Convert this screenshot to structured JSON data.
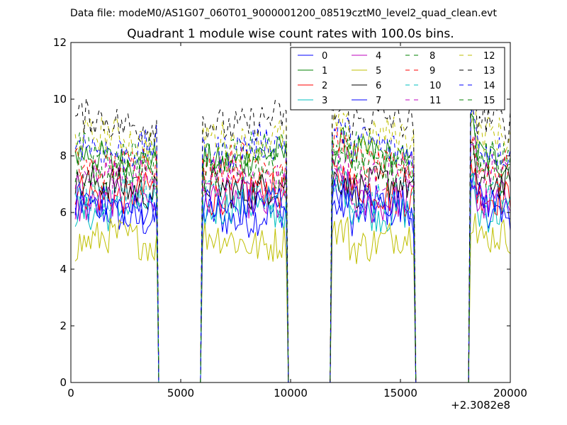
{
  "suptitle": "Data file: modeM0/AS1G07_060T01_9000001200_08519cztM0_level2_quad_clean.evt",
  "chart_data": {
    "type": "line",
    "title": "Quadrant 1 module wise count rates with 100.0s bins.",
    "xlabel": "",
    "ylabel": "",
    "xlim": [
      0,
      20000
    ],
    "ylim": [
      0,
      12
    ],
    "x_ticks": [
      0,
      5000,
      10000,
      15000,
      20000
    ],
    "y_ticks": [
      0,
      2,
      4,
      6,
      8,
      10,
      12
    ],
    "x_offset_label": "+2.3082e8",
    "grid": false,
    "legend_position": "top-right",
    "legend_columns": 4,
    "active_segments": [
      {
        "start": 200,
        "end": 3900
      },
      {
        "start": 6000,
        "end": 9800
      },
      {
        "start": 11900,
        "end": 15600
      },
      {
        "start": 18200,
        "end": 20000
      }
    ],
    "series": [
      {
        "name": "0",
        "color": "#0000ff",
        "dash": "solid",
        "level": 5.9
      },
      {
        "name": "1",
        "color": "#008000",
        "dash": "solid",
        "level": 7.9
      },
      {
        "name": "2",
        "color": "#ff0000",
        "dash": "solid",
        "level": 6.7
      },
      {
        "name": "3",
        "color": "#00bfbf",
        "dash": "solid",
        "level": 6.1
      },
      {
        "name": "4",
        "color": "#bf00bf",
        "dash": "solid",
        "level": 6.4
      },
      {
        "name": "5",
        "color": "#bfbf00",
        "dash": "solid",
        "level": 5.0
      },
      {
        "name": "6",
        "color": "#000000",
        "dash": "solid",
        "level": 6.9
      },
      {
        "name": "7",
        "color": "#0000ff",
        "dash": "solid",
        "level": 6.3
      },
      {
        "name": "8",
        "color": "#008000",
        "dash": "dashed",
        "level": 8.1
      },
      {
        "name": "9",
        "color": "#ff0000",
        "dash": "dashed",
        "level": 7.7
      },
      {
        "name": "10",
        "color": "#00bfbf",
        "dash": "dashed",
        "level": 6.6
      },
      {
        "name": "11",
        "color": "#bf00bf",
        "dash": "dashed",
        "level": 7.3
      },
      {
        "name": "12",
        "color": "#bfbf00",
        "dash": "dashed",
        "level": 8.6
      },
      {
        "name": "13",
        "color": "#000000",
        "dash": "dashed",
        "level": 9.2
      },
      {
        "name": "14",
        "color": "#0000ff",
        "dash": "dashed",
        "level": 8.3
      },
      {
        "name": "15",
        "color": "#008000",
        "dash": "dashed",
        "level": 7.5
      }
    ]
  }
}
